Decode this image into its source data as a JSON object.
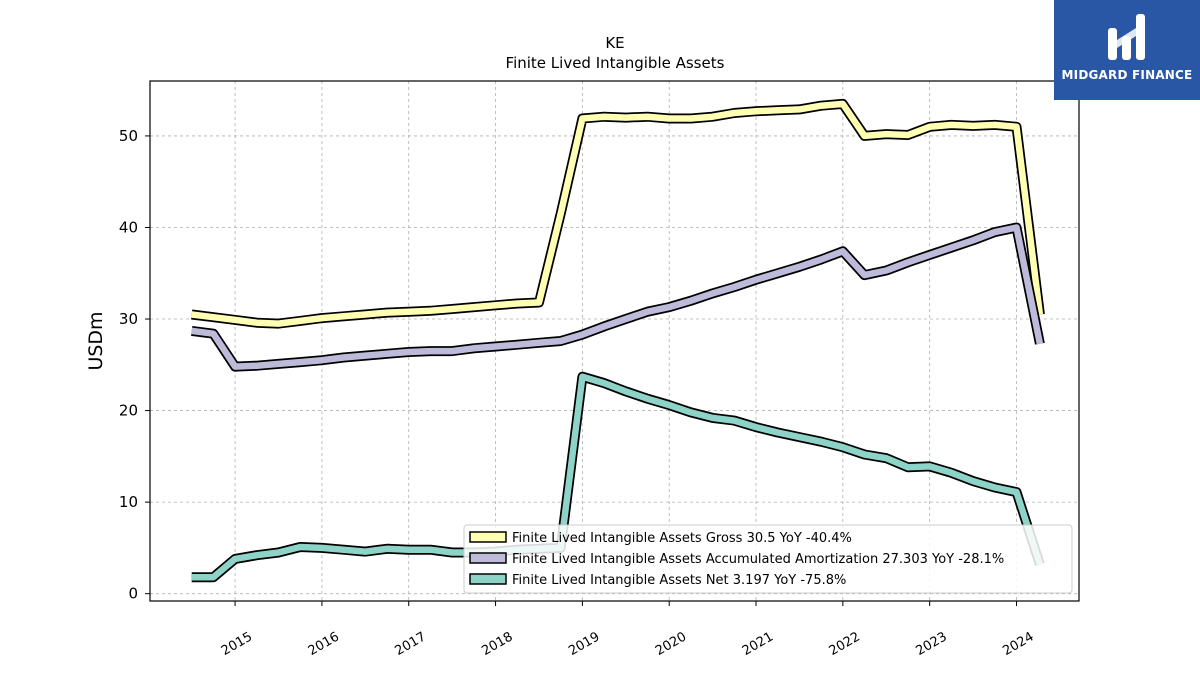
{
  "chart_data": {
    "type": "line",
    "title": "KE",
    "subtitle": "Finite Lived Intangible Assets",
    "ylabel": "USDm",
    "xlabel": "",
    "ylim": [
      -0.8,
      56
    ],
    "xlim": [
      2014.02,
      2024.72
    ],
    "yticks": [
      0,
      10,
      20,
      30,
      40,
      50
    ],
    "xticks": [
      "2015",
      "2016",
      "2017",
      "2018",
      "2019",
      "2020",
      "2021",
      "2022",
      "2023",
      "2024"
    ],
    "grid": true,
    "legend_position": "lower-right",
    "series": [
      {
        "name": "Finite Lived Intangible Assets Gross  30.5 YoY -40.4%",
        "color": "#ffffb3",
        "x": [
          2014.5,
          2014.75,
          2015.0,
          2015.25,
          2015.5,
          2015.75,
          2016.0,
          2016.25,
          2016.5,
          2016.75,
          2017.0,
          2017.25,
          2017.5,
          2017.75,
          2018.0,
          2018.25,
          2018.5,
          2018.75,
          2019.0,
          2019.25,
          2019.5,
          2019.75,
          2020.0,
          2020.25,
          2020.5,
          2020.75,
          2021.0,
          2021.25,
          2021.5,
          2021.75,
          2022.0,
          2022.25,
          2022.5,
          2022.75,
          2023.0,
          2023.25,
          2023.5,
          2023.75,
          2024.0,
          2024.27
        ],
        "values": [
          30.5,
          30.2,
          29.9,
          29.6,
          29.5,
          29.8,
          30.1,
          30.3,
          30.5,
          30.7,
          30.8,
          30.9,
          31.1,
          31.3,
          31.5,
          31.7,
          31.8,
          41.5,
          51.9,
          52.1,
          52.0,
          52.1,
          51.9,
          51.9,
          52.1,
          52.5,
          52.7,
          52.8,
          52.9,
          53.3,
          53.5,
          50.0,
          50.2,
          50.1,
          51.0,
          51.2,
          51.1,
          51.2,
          51.0,
          30.5
        ]
      },
      {
        "name": "Finite Lived Intangible Assets Accumulated Amortization  27.303 YoY -28.1%",
        "color": "#bebada",
        "x": [
          2014.5,
          2014.75,
          2015.0,
          2015.25,
          2015.5,
          2015.75,
          2016.0,
          2016.25,
          2016.5,
          2016.75,
          2017.0,
          2017.25,
          2017.5,
          2017.75,
          2018.0,
          2018.25,
          2018.5,
          2018.75,
          2019.0,
          2019.25,
          2019.5,
          2019.75,
          2020.0,
          2020.25,
          2020.5,
          2020.75,
          2021.0,
          2021.25,
          2021.5,
          2021.75,
          2022.0,
          2022.25,
          2022.5,
          2022.75,
          2023.0,
          2023.25,
          2023.5,
          2023.75,
          2024.0,
          2024.27
        ],
        "values": [
          28.7,
          28.4,
          24.8,
          24.9,
          25.1,
          25.3,
          25.5,
          25.8,
          26.0,
          26.2,
          26.4,
          26.5,
          26.5,
          26.8,
          27.0,
          27.2,
          27.4,
          27.6,
          28.3,
          29.2,
          30.0,
          30.8,
          31.3,
          32.0,
          32.8,
          33.5,
          34.3,
          35.0,
          35.7,
          36.5,
          37.4,
          34.8,
          35.3,
          36.2,
          37.0,
          37.8,
          38.6,
          39.5,
          40.0,
          27.3
        ]
      },
      {
        "name": "Finite Lived Intangible Assets Net  3.197 YoY -75.8%",
        "color": "#8dd3c7",
        "x": [
          2014.5,
          2014.75,
          2015.0,
          2015.25,
          2015.5,
          2015.75,
          2016.0,
          2016.25,
          2016.5,
          2016.75,
          2017.0,
          2017.25,
          2017.5,
          2017.75,
          2018.0,
          2018.25,
          2018.5,
          2018.75,
          2019.0,
          2019.25,
          2019.5,
          2019.75,
          2020.0,
          2020.25,
          2020.5,
          2020.75,
          2021.0,
          2021.25,
          2021.5,
          2021.75,
          2022.0,
          2022.25,
          2022.5,
          2022.75,
          2023.0,
          2023.25,
          2023.5,
          2023.75,
          2024.0,
          2024.27
        ],
        "values": [
          1.8,
          1.8,
          3.8,
          4.2,
          4.5,
          5.1,
          5.0,
          4.8,
          4.6,
          4.9,
          4.8,
          4.8,
          4.5,
          4.5,
          4.6,
          4.8,
          4.9,
          5.0,
          23.7,
          23.0,
          22.1,
          21.3,
          20.6,
          19.8,
          19.2,
          18.9,
          18.2,
          17.6,
          17.1,
          16.6,
          16.0,
          15.2,
          14.8,
          13.8,
          13.9,
          13.2,
          12.3,
          11.6,
          11.1,
          3.2
        ]
      }
    ]
  },
  "logo": {
    "text": "MIDGARD FINANCE"
  }
}
